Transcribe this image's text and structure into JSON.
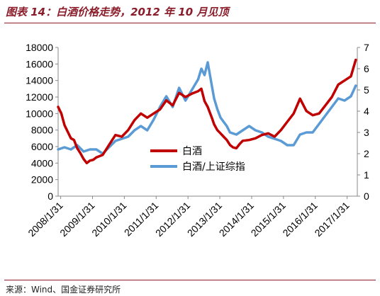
{
  "header": {
    "title": "图表 14：白酒价格走势，2012 年 10 月见顶"
  },
  "footer": {
    "source": "来源：Wind、国金证券研究所"
  },
  "colors": {
    "baijiu": "#c00000",
    "ratio": "#5b9bd5",
    "title": "#8b1d2a"
  },
  "chart_data": {
    "type": "line",
    "title": "",
    "xlabel": "",
    "ylabel": "",
    "ylim": [
      0,
      18000
    ],
    "y2lim": [
      0,
      7
    ],
    "grid": false,
    "legend": "center",
    "yticks": [
      "0",
      "2000",
      "4000",
      "6000",
      "8000",
      "10000",
      "12000",
      "14000",
      "16000",
      "18000"
    ],
    "y2ticks": [
      "0",
      "1",
      "2",
      "3",
      "4",
      "5",
      "6",
      "7"
    ],
    "xticks": [
      "2008/1/31",
      "2009/1/31",
      "2010/1/31",
      "2011/1/31",
      "2012/1/31",
      "2013/1/31",
      "2014/1/31",
      "2015/1/31",
      "2016/1/31",
      "2017/1/31"
    ],
    "series": [
      {
        "name": "白酒",
        "axis": "left",
        "x": [
          2008.0,
          2008.1,
          2008.2,
          2008.3,
          2008.4,
          2008.5,
          2008.6,
          2008.7,
          2008.8,
          2008.9,
          2009.0,
          2009.1,
          2009.2,
          2009.4,
          2009.6,
          2009.8,
          2010.0,
          2010.2,
          2010.4,
          2010.6,
          2010.8,
          2011.0,
          2011.2,
          2011.4,
          2011.6,
          2011.8,
          2012.0,
          2012.2,
          2012.4,
          2012.5,
          2012.6,
          2012.7,
          2012.83,
          2012.9,
          2013.0,
          2013.1,
          2013.2,
          2013.3,
          2013.4,
          2013.5,
          2013.6,
          2013.7,
          2013.8,
          2014.0,
          2014.2,
          2014.4,
          2014.6,
          2014.8,
          2015.0,
          2015.2,
          2015.4,
          2015.6,
          2015.8,
          2016.0,
          2016.2,
          2016.4,
          2016.6,
          2016.8,
          2017.0,
          2017.2,
          2017.35
        ],
        "values": [
          10800,
          10000,
          8600,
          7800,
          7000,
          6800,
          5800,
          5200,
          4500,
          4000,
          4300,
          4400,
          4700,
          5000,
          6200,
          7400,
          7200,
          8000,
          9200,
          10000,
          9500,
          10000,
          10500,
          11600,
          11000,
          12500,
          12000,
          12400,
          12700,
          13000,
          11500,
          10800,
          9500,
          8700,
          8000,
          7600,
          7200,
          6800,
          6200,
          5900,
          5800,
          6300,
          6700,
          6800,
          7000,
          7400,
          7600,
          7200,
          8000,
          9000,
          10000,
          11800,
          10300,
          9800,
          10000,
          11000,
          12000,
          13500,
          14000,
          14500,
          16500
        ]
      },
      {
        "name": "白酒/上证综指",
        "axis": "right",
        "x": [
          2008.0,
          2008.2,
          2008.4,
          2008.6,
          2008.8,
          2009.0,
          2009.2,
          2009.4,
          2009.6,
          2009.8,
          2010.0,
          2010.2,
          2010.4,
          2010.6,
          2010.8,
          2011.0,
          2011.2,
          2011.4,
          2011.6,
          2011.8,
          2012.0,
          2012.2,
          2012.4,
          2012.5,
          2012.6,
          2012.7,
          2012.83,
          2012.9,
          2013.0,
          2013.1,
          2013.2,
          2013.3,
          2013.4,
          2013.6,
          2013.8,
          2014.0,
          2014.2,
          2014.4,
          2014.6,
          2014.8,
          2015.0,
          2015.2,
          2015.4,
          2015.6,
          2015.8,
          2016.0,
          2016.2,
          2016.4,
          2016.6,
          2016.8,
          2017.0,
          2017.2,
          2017.35
        ],
        "values": [
          2.2,
          2.3,
          2.2,
          2.4,
          2.1,
          2.2,
          2.2,
          2.0,
          2.3,
          2.6,
          2.7,
          2.8,
          3.1,
          3.3,
          3.1,
          3.6,
          4.2,
          4.7,
          4.2,
          5.1,
          4.5,
          5.0,
          5.5,
          6.0,
          5.7,
          6.3,
          5.2,
          4.6,
          4.1,
          3.7,
          3.5,
          3.3,
          3.0,
          2.9,
          3.1,
          3.3,
          3.1,
          3.0,
          2.8,
          2.7,
          2.6,
          2.4,
          2.4,
          2.9,
          3.0,
          3.0,
          3.4,
          3.8,
          4.2,
          4.6,
          4.5,
          4.7,
          5.2
        ]
      }
    ]
  }
}
